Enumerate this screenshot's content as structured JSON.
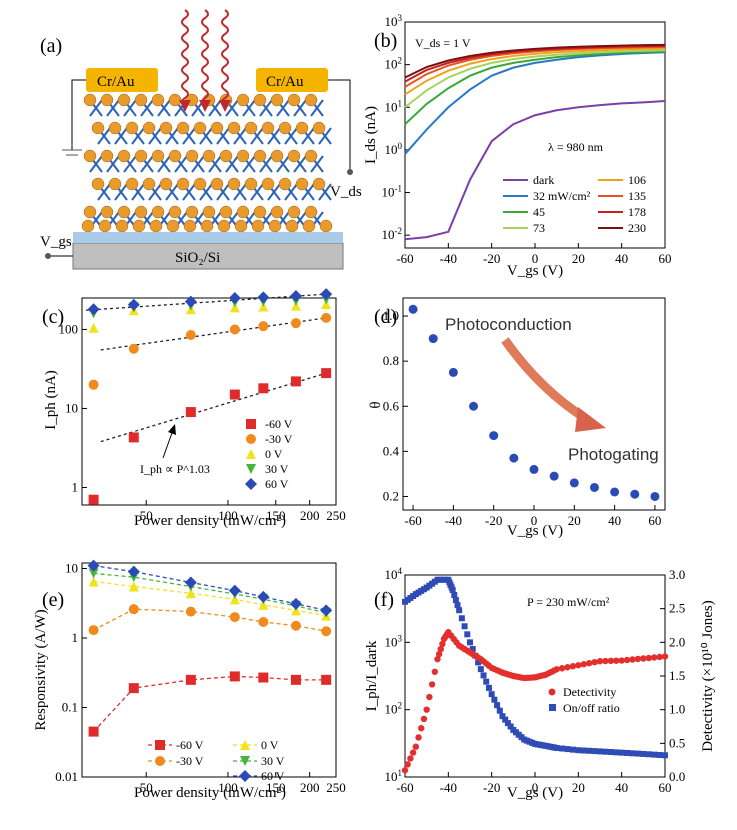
{
  "panels": {
    "a": "(a)",
    "b": "(b)",
    "c": "(c)",
    "d": "(d)",
    "e": "(e)",
    "f": "(f)"
  },
  "device": {
    "electrode_left": "Cr/Au",
    "electrode_right": "Cr/Au",
    "substrate": "SiO₂/Si",
    "vds": "V_ds",
    "vgs": "V_gs"
  },
  "colors": {
    "gold": "#f4b400",
    "atom": "#e89a2a",
    "bond": "#2b63b8",
    "light": "#c0292b",
    "substrate": "#bfbfbf",
    "oxide": "#a9cbe8",
    "d_marker": "#2a4bb5",
    "detect": "#e42f2f",
    "onoff": "#2f4bb4"
  },
  "chart_data": [
    {
      "id": "b",
      "type": "line",
      "title": "",
      "annotation": "V_ds = 1 V",
      "wavelength": "λ = 980 nm",
      "xlabel": "V_gs (V)",
      "ylabel": "I_ds (nA)",
      "yscale": "log",
      "xlim": [
        -60,
        60
      ],
      "ylim": [
        0.005,
        1000
      ],
      "x": [
        -60,
        -50,
        -40,
        -30,
        -20,
        -10,
        0,
        10,
        20,
        30,
        40,
        50,
        60
      ],
      "xticks": [
        "-60",
        "-40",
        "-20",
        "0",
        "20",
        "40",
        "60"
      ],
      "yticks": [
        "10^-2",
        "10^-1",
        "10^0",
        "10^1",
        "10^2",
        "10^3"
      ],
      "series": [
        {
          "name": "dark",
          "color": "#7b3fa6",
          "values": [
            0.008,
            0.009,
            0.012,
            0.2,
            1.6,
            4.0,
            6.5,
            8.5,
            10.0,
            11.2,
            12.3,
            13.0,
            14.0
          ]
        },
        {
          "name": "32 mW/cm²",
          "color": "#2b78c4",
          "values": [
            0.8,
            3,
            10,
            26,
            55,
            85,
            110,
            130,
            150,
            165,
            178,
            188,
            195
          ]
        },
        {
          "name": "45",
          "color": "#3aa935",
          "values": [
            4,
            12,
            28,
            55,
            85,
            110,
            130,
            150,
            165,
            178,
            190,
            198,
            205
          ]
        },
        {
          "name": "73",
          "color": "#a6d35a",
          "values": [
            10,
            25,
            50,
            80,
            110,
            135,
            155,
            170,
            185,
            195,
            205,
            212,
            218
          ]
        },
        {
          "name": "106",
          "color": "#f0a21b",
          "values": [
            20,
            42,
            72,
            105,
            135,
            160,
            180,
            195,
            208,
            218,
            228,
            235,
            240
          ]
        },
        {
          "name": "135",
          "color": "#e5531f",
          "values": [
            30,
            60,
            95,
            130,
            160,
            185,
            205,
            220,
            232,
            242,
            250,
            256,
            260
          ]
        },
        {
          "name": "178",
          "color": "#c81f1f",
          "values": [
            40,
            75,
            110,
            145,
            175,
            200,
            220,
            235,
            248,
            258,
            266,
            272,
            276
          ]
        },
        {
          "name": "230",
          "color": "#7a1010",
          "values": [
            50,
            88,
            125,
            160,
            190,
            215,
            235,
            250,
            262,
            272,
            280,
            286,
            290
          ]
        }
      ]
    },
    {
      "id": "c",
      "type": "scatter",
      "xlabel": "Power density (mW/cm²)",
      "ylabel": "I_ph (nA)",
      "xscale": "log",
      "yscale": "log",
      "xlim": [
        29,
        250
      ],
      "ylim": [
        0.6,
        250
      ],
      "xticks": [
        "50",
        "100",
        "150",
        "200",
        "250"
      ],
      "yticks": [
        "1",
        "10",
        "100"
      ],
      "fit_annotation": "I_ph ∝ P^1.03",
      "x": [
        32,
        45,
        73,
        106,
        135,
        178,
        230
      ],
      "series": [
        {
          "name": "-60 V",
          "color": "#e02b2b",
          "marker": "square",
          "values": [
            0.7,
            4.3,
            9.0,
            15,
            18,
            22,
            28
          ]
        },
        {
          "name": "-30 V",
          "color": "#f08a1c",
          "marker": "circle",
          "values": [
            20,
            57,
            85,
            100,
            110,
            120,
            140
          ]
        },
        {
          "name": "0 V",
          "color": "#f0e21b",
          "marker": "triangle-up",
          "values": [
            105,
            175,
            180,
            190,
            195,
            200,
            210
          ]
        },
        {
          "name": "30 V",
          "color": "#46b53a",
          "marker": "triangle-down",
          "values": [
            160,
            190,
            200,
            220,
            225,
            230,
            240
          ]
        },
        {
          "name": "60 V",
          "color": "#2a4bb5",
          "marker": "diamond",
          "values": [
            180,
            205,
            225,
            250,
            255,
            265,
            280
          ]
        }
      ]
    },
    {
      "id": "d",
      "type": "scatter",
      "xlabel": "V_gs (V)",
      "ylabel": "θ",
      "xlim": [
        -65,
        65
      ],
      "ylim": [
        0.14,
        1.08
      ],
      "xticks": [
        "-60",
        "-40",
        "-20",
        "0",
        "20",
        "40",
        "60"
      ],
      "yticks": [
        "0.2",
        "0.4",
        "0.6",
        "0.8",
        "1.0"
      ],
      "label_top": "Photoconduction",
      "label_bottom": "Photogating",
      "x": [
        -60,
        -50,
        -40,
        -30,
        -20,
        -10,
        0,
        10,
        20,
        30,
        40,
        50,
        60
      ],
      "values": [
        1.03,
        0.9,
        0.75,
        0.6,
        0.47,
        0.37,
        0.32,
        0.29,
        0.26,
        0.24,
        0.22,
        0.21,
        0.2
      ]
    },
    {
      "id": "e",
      "type": "line",
      "xlabel": "Power density (mW/cm²)",
      "ylabel": "Responsivity (A/W)",
      "xscale": "log",
      "yscale": "log",
      "xlim": [
        29,
        250
      ],
      "ylim": [
        0.01,
        12
      ],
      "xticks": [
        "50",
        "100",
        "150",
        "200",
        "250"
      ],
      "yticks": [
        "0.01",
        "0.1",
        "1",
        "10"
      ],
      "x": [
        32,
        45,
        73,
        106,
        135,
        178,
        230
      ],
      "series": [
        {
          "name": "-60 V",
          "color": "#e02b2b",
          "marker": "square",
          "values": [
            0.045,
            0.19,
            0.25,
            0.28,
            0.27,
            0.25,
            0.25
          ]
        },
        {
          "name": "-30 V",
          "color": "#f08a1c",
          "marker": "circle",
          "values": [
            1.3,
            2.6,
            2.4,
            2.0,
            1.7,
            1.5,
            1.25
          ]
        },
        {
          "name": "0 V",
          "color": "#f0e21b",
          "marker": "triangle-up",
          "values": [
            6.5,
            5.5,
            4.4,
            3.6,
            3.0,
            2.5,
            2.1
          ]
        },
        {
          "name": "30 V",
          "color": "#46b53a",
          "marker": "triangle-down",
          "values": [
            8.5,
            7.5,
            5.5,
            4.3,
            3.6,
            2.9,
            2.3
          ]
        },
        {
          "name": "60 V",
          "color": "#2a4bb5",
          "marker": "diamond",
          "values": [
            11,
            9,
            6.3,
            4.8,
            3.9,
            3.1,
            2.5
          ]
        }
      ]
    },
    {
      "id": "f",
      "type": "scatter",
      "annotation": "P = 230 mW/cm²",
      "xlabel": "V_gs (V)",
      "ylabel_left": "I_ph/I_dark",
      "ylabel_right": "Detectivity (×10¹⁰ Jones)",
      "xlim": [
        -60,
        60
      ],
      "ylim_left": [
        10,
        10000
      ],
      "ylim_right": [
        0,
        3.0
      ],
      "xticks": [
        "-60",
        "-40",
        "-20",
        "0",
        "20",
        "40",
        "60"
      ],
      "yticks_left": [
        "10^1",
        "10^2",
        "10^3",
        "10^4"
      ],
      "yticks_right": [
        "0.0",
        "0.5",
        "1.0",
        "1.5",
        "2.0",
        "2.5",
        "3.0"
      ],
      "legend": [
        "Detectivity",
        "On/off ratio"
      ],
      "detectivity": {
        "x": [
          -60,
          -55,
          -50,
          -45,
          -42,
          -40,
          -35,
          -30,
          -25,
          -20,
          -15,
          -10,
          -5,
          0,
          5,
          10,
          20,
          30,
          40,
          50,
          60
        ],
        "y": [
          0.1,
          0.45,
          1.0,
          1.75,
          2.05,
          2.15,
          1.95,
          1.85,
          1.75,
          1.62,
          1.55,
          1.5,
          1.47,
          1.48,
          1.52,
          1.6,
          1.66,
          1.72,
          1.73,
          1.76,
          1.79
        ]
      },
      "onoff": {
        "x": [
          -60,
          -55,
          -50,
          -45,
          -40,
          -38,
          -35,
          -30,
          -25,
          -20,
          -15,
          -10,
          -5,
          0,
          5,
          10,
          20,
          30,
          40,
          50,
          60
        ],
        "y": [
          4000,
          5200,
          6500,
          8500,
          8500,
          6000,
          3000,
          1000,
          400,
          170,
          80,
          50,
          36,
          31,
          29,
          27,
          25,
          24,
          23,
          22,
          21
        ]
      }
    }
  ],
  "legends": {
    "b": [
      "dark",
      "32 mW/cm²",
      "45",
      "73",
      "106",
      "135",
      "178",
      "230"
    ],
    "c": [
      "-60 V",
      "-30 V",
      "0 V",
      "30 V",
      "60 V"
    ],
    "e": [
      "-60 V",
      "-30 V",
      "0 V",
      "30 V",
      "60 V"
    ]
  }
}
